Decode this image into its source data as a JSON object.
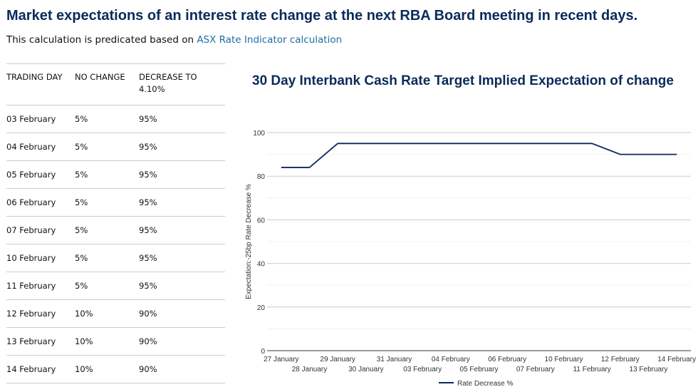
{
  "heading": "Market expectations of an interest rate change at the next RBA Board meeting in recent days.",
  "intro": {
    "text": "This calculation is predicated based on ",
    "link": "ASX Rate Indicator calculation",
    "link_color": "#1a6fa0"
  },
  "table": {
    "headers": [
      "TRADING DAY",
      "NO CHANGE",
      "DECREASE TO 4.10%"
    ],
    "rows": [
      [
        "03 February",
        "5%",
        "95%"
      ],
      [
        "04 February",
        "5%",
        "95%"
      ],
      [
        "05 February",
        "5%",
        "95%"
      ],
      [
        "06 February",
        "5%",
        "95%"
      ],
      [
        "07 February",
        "5%",
        "95%"
      ],
      [
        "10 February",
        "5%",
        "95%"
      ],
      [
        "11 February",
        "5%",
        "95%"
      ],
      [
        "12 February",
        "10%",
        "90%"
      ],
      [
        "13 February",
        "10%",
        "90%"
      ],
      [
        "14 February",
        "10%",
        "90%"
      ]
    ]
  },
  "chart_data": {
    "type": "line",
    "title": "30 Day Interbank Cash Rate Target Implied Expectation of change",
    "ylabel": "Expectation:-25bp Rate Decrease %",
    "xlabel": "",
    "ylim": [
      0,
      100
    ],
    "yticks": [
      0,
      20,
      40,
      60,
      80,
      100
    ],
    "grid": true,
    "legend": "bottom",
    "categories": [
      "27 January",
      "28 January",
      "29 January",
      "30 January",
      "31 January",
      "03 February",
      "04 February",
      "05 February",
      "06 February",
      "07 February",
      "10 February",
      "11 February",
      "12 February",
      "13 February",
      "14 February"
    ],
    "series": [
      {
        "name": "Rate Decrease %",
        "color": "#0b2a5b",
        "values": [
          84,
          84,
          95,
          95,
          95,
          95,
          95,
          95,
          95,
          95,
          95,
          95,
          90,
          90,
          90
        ]
      }
    ]
  }
}
